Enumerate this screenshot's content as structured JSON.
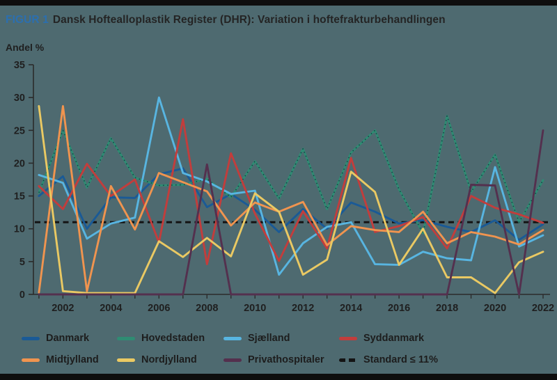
{
  "header": {
    "prefix": "FIGUR 1",
    "title": "Dansk Hoftealloplastik Register (DHR): Variation i hoftefrakturbehandlingen"
  },
  "colors": {
    "background": "#4e6a70",
    "frame_bars": "#0e0e0e",
    "axis": "#2b2b2b",
    "tick_text": "#1f1f1f",
    "title_prefix": "#2b6fb0",
    "title_text": "#242424"
  },
  "chart_data": {
    "type": "line",
    "title": "Dansk Hoftealloplastik Register (DHR): Variation i hoftefrakturbehandlingen",
    "ylabel": "Andel %",
    "xlabel": "",
    "ylim": [
      0,
      35
    ],
    "yticks": [
      0,
      5,
      10,
      15,
      20,
      25,
      30,
      35
    ],
    "x": [
      2001,
      2002,
      2003,
      2004,
      2005,
      2006,
      2007,
      2008,
      2009,
      2010,
      2011,
      2012,
      2013,
      2014,
      2015,
      2016,
      2017,
      2018,
      2019,
      2020,
      2021,
      2022
    ],
    "x_tick_labels": [
      2002,
      2004,
      2006,
      2008,
      2010,
      2012,
      2014,
      2016,
      2018,
      2020,
      2022
    ],
    "grid": false,
    "legend_position": "bottom",
    "series": [
      {
        "name": "Danmark",
        "color": "#1a5a96",
        "dot_overlay": false,
        "values": [
          15.0,
          18.0,
          10.0,
          14.8,
          14.7,
          18.3,
          19.2,
          13.3,
          15.3,
          12.9,
          9.5,
          13.0,
          10.0,
          14.0,
          12.6,
          10.8,
          11.3,
          10.3,
          9.5,
          11.3,
          8.3,
          10.7
        ]
      },
      {
        "name": "Hovedstaden",
        "color": "#2f8c73",
        "dot_overlay": true,
        "values": [
          15.5,
          25.0,
          16.3,
          23.8,
          17.8,
          16.6,
          16.7,
          17.6,
          14.8,
          20.3,
          14.6,
          22.2,
          13.0,
          21.6,
          25.0,
          16.0,
          9.3,
          27.2,
          15.6,
          21.3,
          11.0,
          17.4
        ]
      },
      {
        "name": "Sjælland",
        "color": "#58b5e1",
        "dot_overlay": false,
        "values": [
          18.2,
          17.0,
          8.5,
          10.8,
          11.7,
          30.0,
          18.5,
          17.2,
          15.3,
          15.8,
          3.0,
          7.8,
          10.3,
          11.0,
          4.6,
          4.5,
          6.5,
          5.5,
          5.2,
          19.4,
          7.3,
          9.0
        ]
      },
      {
        "name": "Syddanmark",
        "color": "#c23d3c",
        "dot_overlay": false,
        "values": [
          16.5,
          13.0,
          19.9,
          15.0,
          17.5,
          7.9,
          26.7,
          4.6,
          21.5,
          12.3,
          5.1,
          12.7,
          7.0,
          20.8,
          9.5,
          10.4,
          11.8,
          7.0,
          15.0,
          13.2,
          12.2,
          10.9
        ]
      },
      {
        "name": "Midtjylland",
        "color": "#f0944f",
        "dot_overlay": false,
        "values": [
          0.3,
          28.7,
          0.5,
          16.5,
          9.9,
          18.5,
          17.1,
          15.7,
          10.5,
          14.0,
          12.6,
          14.1,
          7.5,
          10.4,
          9.8,
          9.5,
          12.6,
          7.8,
          9.5,
          8.8,
          7.6,
          9.8
        ]
      },
      {
        "name": "Nordjylland",
        "color": "#eac963",
        "dot_overlay": false,
        "values": [
          28.7,
          0.5,
          0.2,
          0.2,
          0.2,
          8.1,
          5.7,
          8.6,
          5.8,
          15.4,
          12.6,
          3.0,
          5.3,
          18.7,
          15.6,
          4.5,
          10.0,
          2.6,
          2.6,
          0.2,
          4.9,
          6.5
        ]
      },
      {
        "name": "Privathospitaler",
        "color": "#54304e",
        "dot_overlay": false,
        "values": [
          0,
          0,
          0,
          0,
          0,
          0,
          0,
          19.8,
          0,
          0,
          0,
          0,
          0,
          0,
          0,
          0,
          0,
          0,
          16.7,
          16.6,
          0,
          25.0
        ]
      }
    ],
    "reference_line": {
      "label": "Standard ≤ 11%",
      "value": 11,
      "color": "#141414",
      "style": "dashed"
    }
  }
}
